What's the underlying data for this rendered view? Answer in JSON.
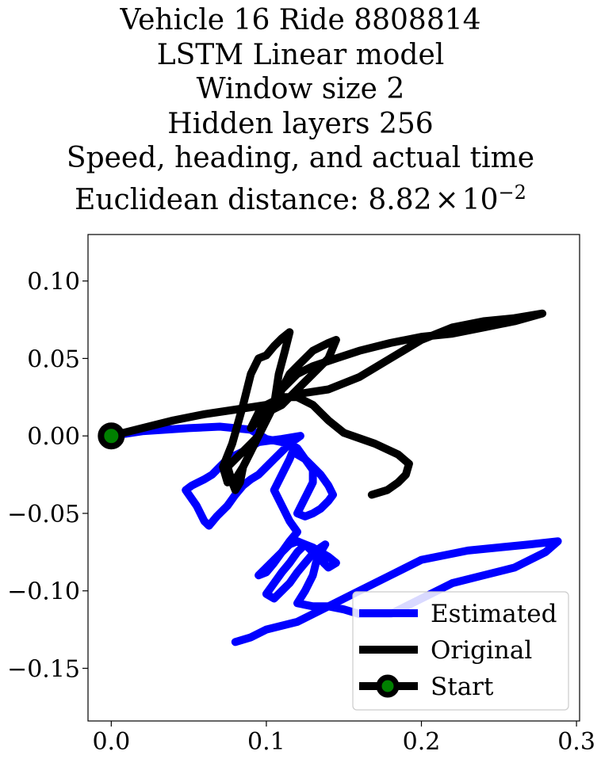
{
  "chart_data": {
    "type": "line",
    "title_lines": [
      "Vehicle 16 Ride 8808814",
      "LSTM Linear model",
      "Window size 2",
      "Hidden layers 256",
      "Speed, heading, and actual time"
    ],
    "distance_label": "Euclidean distance: ",
    "distance_mantissa": "8.82",
    "distance_times": "×",
    "distance_base": "10",
    "distance_exponent": "−2",
    "xlabel": "",
    "ylabel": "",
    "xlim": [
      -0.015,
      0.302
    ],
    "ylim": [
      -0.184,
      0.13
    ],
    "xticks": [
      0.0,
      0.1,
      0.2,
      0.3
    ],
    "xtick_labels": [
      "0.0",
      "0.1",
      "0.2",
      "0.3"
    ],
    "yticks": [
      0.1,
      0.05,
      0.0,
      -0.05,
      -0.1,
      -0.15
    ],
    "ytick_labels": [
      "0.10",
      "0.05",
      "0.00",
      "−0.05",
      "−0.10",
      "−0.15"
    ],
    "grid": false,
    "legend_position": "lower-right",
    "series": [
      {
        "name": "Estimated",
        "color": "#0000ff",
        "x": [
          0.0,
          0.02,
          0.05,
          0.07,
          0.09,
          0.1,
          0.115,
          0.122,
          0.11,
          0.095,
          0.085,
          0.075,
          0.07,
          0.065,
          0.06,
          0.052,
          0.048,
          0.055,
          0.06,
          0.063,
          0.068,
          0.075,
          0.08,
          0.085,
          0.09,
          0.095,
          0.1,
          0.105,
          0.11,
          0.115,
          0.12,
          0.125,
          0.13,
          0.135,
          0.14,
          0.143,
          0.14,
          0.135,
          0.13,
          0.125,
          0.12,
          0.125,
          0.13,
          0.13,
          0.125,
          0.12,
          0.117,
          0.115,
          0.11,
          0.105,
          0.11,
          0.115,
          0.12,
          0.115,
          0.11,
          0.105,
          0.1,
          0.095,
          0.1,
          0.105,
          0.11,
          0.115,
          0.12,
          0.125,
          0.13,
          0.135,
          0.14,
          0.145,
          0.14,
          0.135,
          0.13,
          0.125,
          0.12,
          0.115,
          0.11,
          0.105,
          0.1,
          0.105,
          0.11,
          0.115,
          0.12,
          0.125,
          0.13,
          0.135,
          0.138,
          0.135,
          0.132,
          0.13,
          0.125,
          0.12,
          0.13,
          0.14,
          0.15,
          0.16,
          0.18,
          0.2,
          0.22,
          0.24,
          0.26,
          0.27,
          0.28,
          0.288,
          0.27,
          0.25,
          0.23,
          0.2,
          0.18,
          0.16,
          0.14,
          0.12,
          0.1,
          0.09,
          0.08
        ],
        "y": [
          0.0,
          0.003,
          0.005,
          0.006,
          0.004,
          -0.002,
          -0.005,
          0.0,
          -0.002,
          -0.004,
          -0.01,
          -0.015,
          -0.02,
          -0.025,
          -0.028,
          -0.032,
          -0.035,
          -0.045,
          -0.055,
          -0.058,
          -0.052,
          -0.045,
          -0.038,
          -0.032,
          -0.028,
          -0.025,
          -0.02,
          -0.015,
          -0.01,
          -0.005,
          -0.008,
          -0.015,
          -0.02,
          -0.025,
          -0.032,
          -0.038,
          -0.042,
          -0.047,
          -0.05,
          -0.052,
          -0.05,
          -0.04,
          -0.03,
          -0.022,
          -0.015,
          -0.012,
          -0.01,
          -0.015,
          -0.025,
          -0.035,
          -0.045,
          -0.055,
          -0.062,
          -0.068,
          -0.075,
          -0.082,
          -0.088,
          -0.09,
          -0.085,
          -0.08,
          -0.075,
          -0.07,
          -0.068,
          -0.07,
          -0.075,
          -0.08,
          -0.085,
          -0.082,
          -0.078,
          -0.075,
          -0.072,
          -0.07,
          -0.075,
          -0.082,
          -0.088,
          -0.095,
          -0.102,
          -0.105,
          -0.1,
          -0.095,
          -0.088,
          -0.082,
          -0.076,
          -0.072,
          -0.07,
          -0.075,
          -0.082,
          -0.09,
          -0.1,
          -0.108,
          -0.11,
          -0.11,
          -0.112,
          -0.115,
          -0.115,
          -0.105,
          -0.095,
          -0.09,
          -0.085,
          -0.08,
          -0.075,
          -0.068,
          -0.07,
          -0.072,
          -0.074,
          -0.08,
          -0.09,
          -0.1,
          -0.11,
          -0.12,
          -0.125,
          -0.13,
          -0.133
        ]
      },
      {
        "name": "Original",
        "color": "#000000",
        "x": [
          0.0,
          0.02,
          0.04,
          0.06,
          0.08,
          0.1,
          0.12,
          0.14,
          0.16,
          0.18,
          0.2,
          0.22,
          0.24,
          0.26,
          0.278,
          0.26,
          0.24,
          0.22,
          0.2,
          0.18,
          0.16,
          0.145,
          0.13,
          0.12,
          0.11,
          0.1,
          0.095,
          0.09,
          0.085,
          0.08,
          0.075,
          0.072,
          0.078,
          0.085,
          0.09,
          0.095,
          0.1,
          0.105,
          0.11,
          0.115,
          0.112,
          0.108,
          0.105,
          0.1,
          0.095,
          0.09,
          0.085,
          0.083,
          0.08,
          0.078,
          0.075,
          0.08,
          0.085,
          0.09,
          0.095,
          0.1,
          0.105,
          0.11,
          0.115,
          0.12,
          0.13,
          0.14,
          0.145,
          0.14,
          0.13,
          0.12,
          0.11,
          0.1,
          0.095,
          0.09,
          0.095,
          0.1,
          0.11,
          0.12,
          0.13,
          0.135,
          0.14,
          0.15,
          0.17,
          0.185,
          0.192,
          0.19,
          0.185,
          0.178,
          0.168
        ],
        "y": [
          0.0,
          0.005,
          0.01,
          0.014,
          0.017,
          0.02,
          0.027,
          0.03,
          0.038,
          0.05,
          0.062,
          0.07,
          0.074,
          0.076,
          0.079,
          0.074,
          0.07,
          0.066,
          0.064,
          0.06,
          0.055,
          0.05,
          0.045,
          0.04,
          0.03,
          0.015,
          0.0,
          -0.01,
          -0.02,
          -0.028,
          -0.03,
          -0.02,
          -0.005,
          0.02,
          0.04,
          0.05,
          0.052,
          0.058,
          0.063,
          0.067,
          0.055,
          0.04,
          0.02,
          0.01,
          0.0,
          -0.01,
          -0.02,
          -0.03,
          -0.035,
          -0.03,
          -0.02,
          -0.015,
          -0.01,
          -0.005,
          0.0,
          0.01,
          0.02,
          0.03,
          0.04,
          0.045,
          0.055,
          0.06,
          0.062,
          0.05,
          0.04,
          0.03,
          0.02,
          0.015,
          0.01,
          0.005,
          0.015,
          0.02,
          0.025,
          0.025,
          0.02,
          0.015,
          0.01,
          0.002,
          -0.005,
          -0.012,
          -0.018,
          -0.025,
          -0.03,
          -0.035,
          -0.038
        ]
      }
    ],
    "start_label": "Start",
    "start_point": {
      "x": 0.0,
      "y": 0.0
    },
    "start_marker_edge": "#000000",
    "start_marker_face": "#008000"
  }
}
